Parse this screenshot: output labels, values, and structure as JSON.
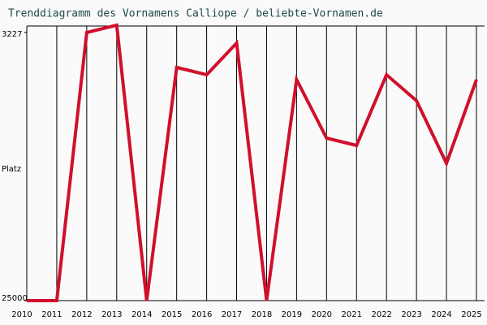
{
  "chart_data": {
    "type": "line",
    "title": "Trenddiagramm des Vornamens Calliope / beliebte-Vornamen.de",
    "y_label": "Platz",
    "categories": [
      "2010",
      "2011",
      "2012",
      "2013",
      "2014",
      "2015",
      "2016",
      "2017",
      "2018",
      "2019",
      "2020",
      "2021",
      "2022",
      "2023",
      "2024",
      "2025"
    ],
    "series": [
      {
        "name": "Calliope",
        "color": "#d0102c",
        "values": [
          25000,
          25000,
          3227,
          2634,
          25000,
          6065,
          6658,
          4085,
          25000,
          7054,
          11804,
          12398,
          6658,
          8769,
          13850,
          7054
        ]
      }
    ],
    "ylim": [
      25000,
      3227
    ],
    "yticks": [
      3227,
      25000
    ],
    "grid": true
  }
}
